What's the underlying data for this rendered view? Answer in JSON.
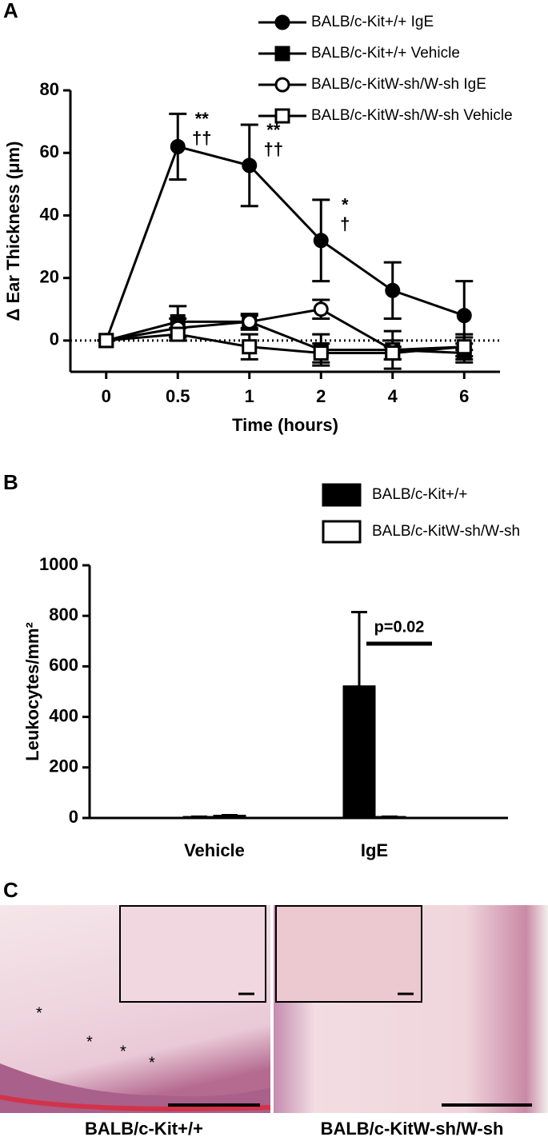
{
  "chart_data": [
    {
      "type": "line",
      "panel_label": "A",
      "x_label": "Time (hours)",
      "y_label": "Δ Ear Thickness (μm)",
      "categories": [
        "0",
        "0.5",
        "1",
        "2",
        "4",
        "6"
      ],
      "ylim": [
        -10,
        80
      ],
      "yticks": [
        0,
        20,
        40,
        60,
        80
      ],
      "hline": 0,
      "series": [
        {
          "name": "BALB/c-Kit+/+ IgE",
          "color": "#000000",
          "marker": "circle",
          "filled": true,
          "values": [
            0,
            62,
            56,
            32,
            16,
            8
          ],
          "errors": [
            0,
            10.5,
            13,
            13,
            9,
            11
          ]
        },
        {
          "name": "BALB/c-Kit+/+ Vehicle",
          "color": "#000000",
          "marker": "square",
          "filled": true,
          "values": [
            0,
            6,
            6,
            -3,
            -3,
            -4
          ],
          "errors": [
            0,
            5,
            2.5,
            5,
            6,
            3
          ]
        },
        {
          "name": "BALB/c-KitW-sh/W-sh IgE",
          "color": "#000000",
          "marker": "circle",
          "filled": false,
          "values": [
            0,
            4,
            6,
            10,
            -3,
            -2
          ],
          "errors": [
            0,
            3,
            2,
            3,
            3,
            3
          ]
        },
        {
          "name": "BALB/c-KitW-sh/W-sh Vehicle",
          "color": "#000000",
          "marker": "square",
          "filled": false,
          "values": [
            0,
            2,
            -2,
            -4,
            -4,
            -2
          ],
          "errors": [
            0,
            2,
            4,
            3,
            2,
            4
          ]
        }
      ],
      "annotations": [
        {
          "at": "0.5",
          "text": [
            "**",
            "††"
          ]
        },
        {
          "at": "1",
          "text": [
            "**",
            "††"
          ]
        },
        {
          "at": "2",
          "text": [
            "*",
            "†"
          ]
        }
      ]
    },
    {
      "type": "bar",
      "panel_label": "B",
      "y_label": "Leukocytes/mm²",
      "categories": [
        "Vehicle",
        "IgE"
      ],
      "ylim": [
        0,
        1000
      ],
      "yticks": [
        0,
        200,
        400,
        600,
        800,
        1000
      ],
      "series": [
        {
          "name": "BALB/c-Kit+/+",
          "color": "#000000",
          "values": [
            3,
            520
          ],
          "errors": [
            2,
            295
          ]
        },
        {
          "name": "BALB/c-KitW-sh/W-sh",
          "color": "#ffffff",
          "values": [
            8,
            3
          ],
          "errors": [
            3,
            2
          ]
        }
      ],
      "annotations": [
        {
          "at": "IgE",
          "text": "p=0.02"
        }
      ]
    }
  ],
  "panel_c": {
    "label": "C",
    "images": [
      {
        "caption": "BALB/c-Kit+/+"
      },
      {
        "caption": "BALB/c-KitW-sh/W-sh"
      }
    ]
  }
}
